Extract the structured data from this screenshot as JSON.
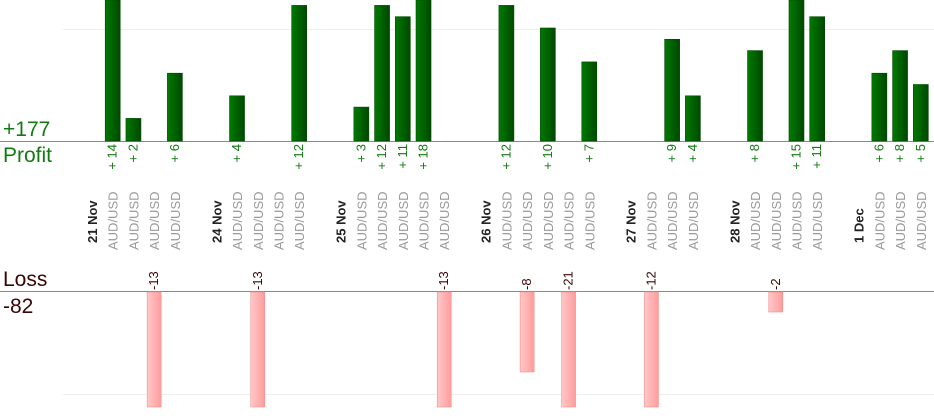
{
  "summary": {
    "profit_total": "+177",
    "profit_label": "Profit",
    "loss_label": "Loss",
    "loss_total": "-82"
  },
  "colors": {
    "profit_bar": "#006a00",
    "profit_bar_dark": "#004a00",
    "profit_text": "#137a13",
    "loss_bar": "#ffb0b0",
    "loss_bar_border": "#f09090",
    "loss_text": "#3a0505",
    "symbol_text": "#999999",
    "date_text": "#222222",
    "axis": "#888888",
    "grid": "#eeeeee"
  },
  "chart_data": {
    "type": "bar",
    "title": "",
    "profit_scale_units_visible": [
      0,
      12.5
    ],
    "loss_scale_units_visible": [
      0,
      -11.5
    ],
    "columns": [
      {
        "kind": "date",
        "label": "21 Nov"
      },
      {
        "kind": "trade",
        "symbol": "AUD/USD",
        "value": 14,
        "label": "+ 14"
      },
      {
        "kind": "trade",
        "symbol": "AUD/USD",
        "value": 2,
        "label": "+ 2"
      },
      {
        "kind": "trade",
        "symbol": "AUD/USD",
        "value": -13,
        "label": "-13"
      },
      {
        "kind": "trade",
        "symbol": "AUD/USD",
        "value": 6,
        "label": "+ 6"
      },
      {
        "kind": "gap"
      },
      {
        "kind": "date",
        "label": "24 Nov"
      },
      {
        "kind": "trade",
        "symbol": "AUD/USD",
        "value": 4,
        "label": "+ 4"
      },
      {
        "kind": "trade",
        "symbol": "AUD/USD",
        "value": -13,
        "label": "-13"
      },
      {
        "kind": "trade",
        "symbol": "AUD/USD",
        "value": 0,
        "label": ""
      },
      {
        "kind": "trade",
        "symbol": "AUD/USD",
        "value": 12,
        "label": "+ 12"
      },
      {
        "kind": "gap"
      },
      {
        "kind": "date",
        "label": "25 Nov"
      },
      {
        "kind": "trade",
        "symbol": "AUD/USD",
        "value": 3,
        "label": "+ 3"
      },
      {
        "kind": "trade",
        "symbol": "AUD/USD",
        "value": 12,
        "label": "+ 12"
      },
      {
        "kind": "trade",
        "symbol": "AUD/USD",
        "value": 11,
        "label": "+ 11"
      },
      {
        "kind": "trade",
        "symbol": "AUD/USD",
        "value": 18,
        "label": "+ 18"
      },
      {
        "kind": "trade",
        "symbol": "AUD/USD",
        "value": -13,
        "label": "-13"
      },
      {
        "kind": "gap"
      },
      {
        "kind": "date",
        "label": "26 Nov"
      },
      {
        "kind": "trade",
        "symbol": "AUD/USD",
        "value": 12,
        "label": "+ 12"
      },
      {
        "kind": "trade",
        "symbol": "AUD/USD",
        "value": -8,
        "label": "-8"
      },
      {
        "kind": "trade",
        "symbol": "AUD/USD",
        "value": 10,
        "label": "+ 10"
      },
      {
        "kind": "trade",
        "symbol": "AUD/USD",
        "value": -21,
        "label": "-21"
      },
      {
        "kind": "trade",
        "symbol": "AUD/USD",
        "value": 7,
        "label": "+ 7"
      },
      {
        "kind": "gap"
      },
      {
        "kind": "date",
        "label": "27 Nov"
      },
      {
        "kind": "trade",
        "symbol": "AUD/USD",
        "value": -12,
        "label": "-12"
      },
      {
        "kind": "trade",
        "symbol": "AUD/USD",
        "value": 9,
        "label": "+ 9"
      },
      {
        "kind": "trade",
        "symbol": "AUD/USD",
        "value": 4,
        "label": "+ 4"
      },
      {
        "kind": "gap"
      },
      {
        "kind": "date",
        "label": "28 Nov"
      },
      {
        "kind": "trade",
        "symbol": "AUD/USD",
        "value": 8,
        "label": "+ 8"
      },
      {
        "kind": "trade",
        "symbol": "AUD/USD",
        "value": -2,
        "label": "-2"
      },
      {
        "kind": "trade",
        "symbol": "AUD/USD",
        "value": 15,
        "label": "+ 15"
      },
      {
        "kind": "trade",
        "symbol": "AUD/USD",
        "value": 11,
        "label": "+ 11"
      },
      {
        "kind": "gap"
      },
      {
        "kind": "date",
        "label": "1 Dec"
      },
      {
        "kind": "trade",
        "symbol": "AUD/USD",
        "value": 6,
        "label": "+ 6"
      },
      {
        "kind": "trade",
        "symbol": "AUD/USD",
        "value": 8,
        "label": "+ 8"
      },
      {
        "kind": "trade",
        "symbol": "AUD/USD",
        "value": 5,
        "label": "+ 5"
      }
    ]
  }
}
